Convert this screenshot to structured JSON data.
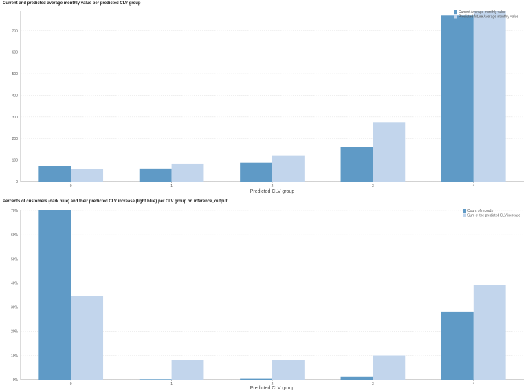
{
  "colors": {
    "dark": "#5f9ac6",
    "light": "#c2d5ec",
    "grid": "#e3e3e3",
    "axis": "#888888"
  },
  "chart_data": [
    {
      "type": "bar",
      "title": "Current and predicted average monthly value per predicted CLV group",
      "xlabel": "Predicted CLV group",
      "ylabel": "",
      "categories": [
        "0",
        "1",
        "2",
        "3",
        "4"
      ],
      "ylim": [
        0,
        790
      ],
      "yticks": [
        0,
        100,
        200,
        300,
        400,
        500,
        600,
        700
      ],
      "ytick_labels": [
        "0",
        "100",
        "200",
        "300",
        "400",
        "500",
        "600",
        "700"
      ],
      "series": [
        {
          "name": "Current Average monthly value",
          "values": [
            73,
            61,
            87,
            161,
            770
          ]
        },
        {
          "name": "Predicted future Average monthly value",
          "values": [
            60,
            83,
            119,
            273,
            800
          ]
        }
      ],
      "grid": true,
      "legend": "top-right"
    },
    {
      "type": "bar",
      "title": "Percents of customers (dark blue) and their predicted CLV increase (light blue) per CLV group on inference_output",
      "xlabel": "Predicted CLV group",
      "ylabel": "",
      "categories": [
        "0",
        "1",
        "2",
        "3",
        "4"
      ],
      "ylim": [
        0,
        70
      ],
      "yticks": [
        0,
        10,
        20,
        30,
        40,
        50,
        60,
        70
      ],
      "ytick_labels": [
        "0%",
        "10%",
        "20%",
        "30%",
        "40%",
        "50%",
        "60%",
        "70%"
      ],
      "series": [
        {
          "name": "Count of records",
          "values": [
            70,
            0.2,
            0.4,
            1.2,
            28.2
          ]
        },
        {
          "name": "Sum of the predicted CLV increase",
          "values": [
            34.7,
            8.2,
            8.0,
            10.1,
            39.1
          ]
        }
      ],
      "grid": true,
      "legend": "top-right"
    }
  ]
}
